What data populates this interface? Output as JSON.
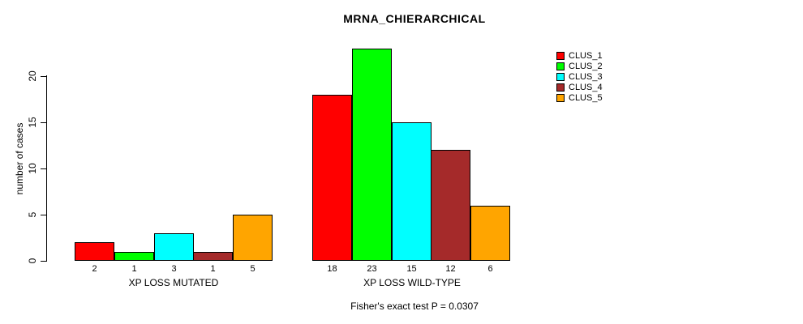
{
  "title": "MRNA_CHIERARCHICAL",
  "annotation": "Fisher's exact test P = 0.0307",
  "chart_data": {
    "type": "bar",
    "title": "MRNA_CHIERARCHICAL",
    "xlabel": "",
    "ylabel": "number of cases",
    "ylim": [
      0,
      23
    ],
    "yticks": [
      0,
      5,
      10,
      15,
      20
    ],
    "grid": false,
    "legend_position": "right",
    "bar_value_labels_shown": true,
    "series": [
      {
        "name": "CLUS_1",
        "color": "#FF0000"
      },
      {
        "name": "CLUS_2",
        "color": "#00FF00"
      },
      {
        "name": "CLUS_3",
        "color": "#00FFFF"
      },
      {
        "name": "CLUS_4",
        "color": "#A52A2A"
      },
      {
        "name": "CLUS_5",
        "color": "#FFA500"
      }
    ],
    "groups": [
      {
        "label": "XP LOSS MUTATED",
        "values": [
          2,
          1,
          3,
          1,
          5
        ]
      },
      {
        "label": "XP LOSS WILD-TYPE",
        "values": [
          18,
          23,
          15,
          12,
          6
        ]
      }
    ],
    "annotation": "Fisher's exact test P = 0.0307"
  }
}
